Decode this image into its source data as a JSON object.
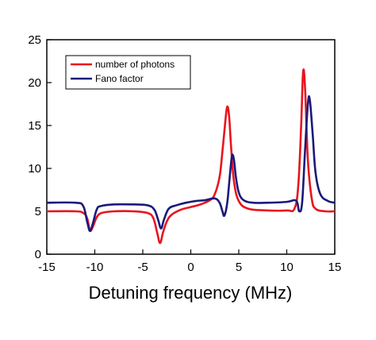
{
  "chart_data": {
    "type": "line",
    "title": "",
    "xlabel": "Detuning frequency (MHz)",
    "ylabel": "",
    "xlim": [
      -15,
      15
    ],
    "ylim": [
      0,
      25
    ],
    "xticks": [
      -15,
      -10,
      -5,
      0,
      5,
      10,
      15
    ],
    "yticks": [
      0,
      5,
      10,
      15,
      20,
      25
    ],
    "xtick_labels": [
      "-15",
      "-10",
      "-5",
      "0",
      "5",
      "10",
      "15"
    ],
    "ytick_labels": [
      "0",
      "5",
      "10",
      "15",
      "20",
      "25"
    ],
    "grid": false,
    "legend_position": "top-left",
    "series": [
      {
        "name": "number of photons",
        "color": "#e8141e",
        "x": [
          -15,
          -12,
          -11.2,
          -10.8,
          -10.5,
          -10.2,
          -9.8,
          -9.3,
          -8,
          -6,
          -4.5,
          -3.9,
          -3.5,
          -3.2,
          -2.9,
          -2.5,
          -2,
          -1,
          0,
          1,
          2,
          2.5,
          3,
          3.3,
          3.6,
          3.8,
          4.0,
          4.2,
          4.5,
          5,
          6,
          8,
          10,
          10.8,
          11.2,
          11.5,
          11.7,
          11.9,
          12.2,
          12.6,
          13,
          14,
          15
        ],
        "y": [
          5.0,
          5.0,
          4.8,
          4.2,
          2.8,
          3.2,
          4.3,
          4.8,
          5.0,
          5.0,
          4.8,
          4.2,
          2.5,
          1.3,
          2.5,
          3.8,
          4.6,
          5.2,
          5.5,
          5.8,
          6.3,
          7.0,
          9.0,
          12.0,
          15.5,
          17.2,
          16.0,
          12.5,
          8.5,
          6.2,
          5.3,
          5.1,
          5.1,
          5.3,
          8.0,
          15.0,
          21.2,
          19.5,
          11.0,
          6.5,
          5.3,
          5.0,
          5.0
        ]
      },
      {
        "name": "Fano factor",
        "color": "#1a1a7a",
        "x": [
          -15,
          -12,
          -11.2,
          -10.8,
          -10.5,
          -10.2,
          -9.8,
          -9.4,
          -8,
          -6,
          -4.5,
          -3.8,
          -3.4,
          -3.1,
          -2.8,
          -2.3,
          -1.5,
          -0.5,
          0.5,
          1.5,
          2.5,
          3.0,
          3.3,
          3.5,
          3.8,
          4.1,
          4.3,
          4.5,
          4.7,
          5.0,
          5.5,
          6.5,
          8,
          10,
          10.8,
          11.1,
          11.3,
          11.6,
          11.9,
          12.2,
          12.4,
          12.7,
          13.0,
          13.5,
          14.3,
          15
        ],
        "y": [
          6.0,
          6.0,
          5.6,
          3.8,
          2.7,
          3.6,
          5.2,
          5.6,
          5.8,
          5.8,
          5.7,
          5.2,
          4.0,
          3.0,
          4.0,
          5.3,
          5.7,
          6.0,
          6.2,
          6.3,
          6.5,
          6.0,
          5.0,
          4.5,
          6.0,
          9.5,
          11.5,
          11.0,
          9.0,
          7.2,
          6.3,
          6.0,
          6.0,
          6.1,
          6.3,
          6.0,
          5.0,
          6.0,
          12.0,
          17.5,
          18.0,
          14.0,
          9.5,
          7.0,
          6.2,
          6.0
        ]
      }
    ]
  }
}
